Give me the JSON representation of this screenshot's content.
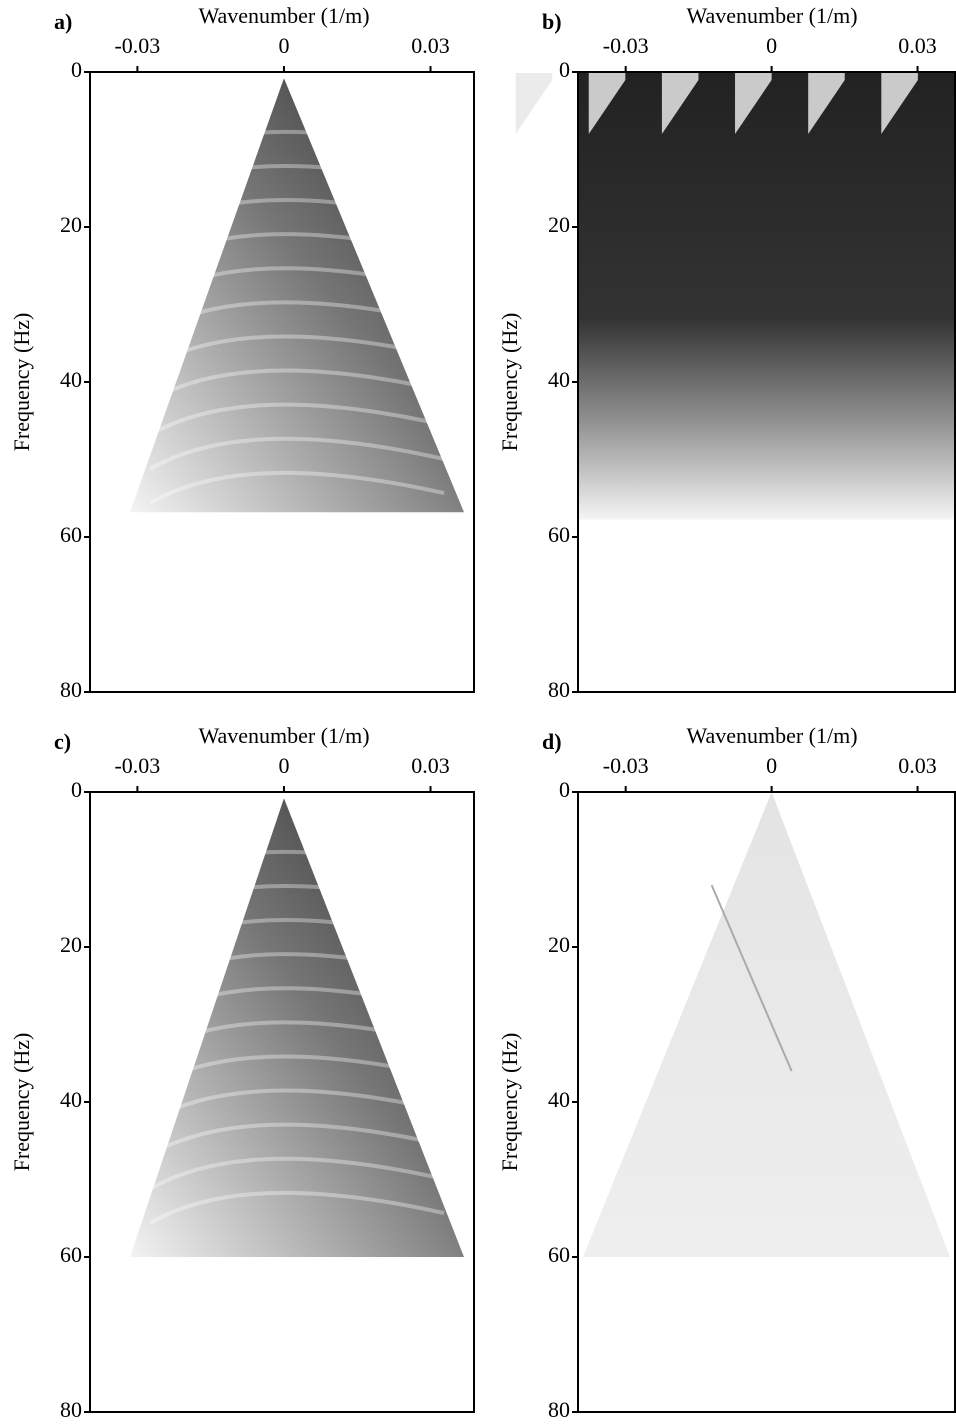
{
  "chart_data": [
    {
      "type": "image",
      "label": "a)",
      "xlabel": "Wavenumber (1/m)",
      "ylabel": "Frequency (Hz)",
      "xlim": [
        -0.0397,
        0.0389
      ],
      "xticks": [
        -0.03,
        0,
        0.03
      ],
      "ylim": [
        0,
        80
      ],
      "yticks": [
        0,
        20,
        40,
        60,
        80
      ],
      "y_inverted": true
    },
    {
      "type": "image",
      "label": "b)",
      "xlabel": "Wavenumber (1/m)",
      "ylabel": "Frequency (Hz)",
      "xlim": [
        -0.0398,
        0.0377
      ],
      "xticks": [
        -0.03,
        0,
        0.03
      ],
      "ylim": [
        0,
        80
      ],
      "yticks": [
        0,
        20,
        40,
        60,
        80
      ],
      "y_inverted": true
    },
    {
      "type": "image",
      "label": "c)",
      "xlabel": "Wavenumber (1/m)",
      "ylabel": "Frequency (Hz)",
      "xlim": [
        -0.0397,
        0.0389
      ],
      "xticks": [
        -0.03,
        0,
        0.03
      ],
      "ylim": [
        0,
        80
      ],
      "yticks": [
        0,
        20,
        40,
        60,
        80
      ],
      "y_inverted": true
    },
    {
      "type": "image",
      "label": "d)",
      "xlabel": "Wavenumber (1/m)",
      "ylabel": "Frequency (Hz)",
      "xlim": [
        -0.0398,
        0.0377
      ],
      "xticks": [
        -0.03,
        0,
        0.03
      ],
      "ylim": [
        0,
        80
      ],
      "yticks": [
        0,
        20,
        40,
        60,
        80
      ],
      "y_inverted": true
    }
  ]
}
